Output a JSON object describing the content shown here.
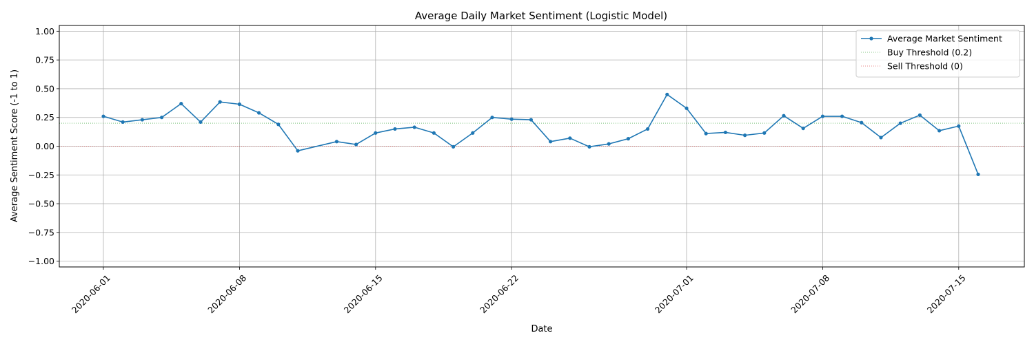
{
  "chart_data": {
    "type": "line",
    "title": "Average Daily Market Sentiment (Logistic Model)",
    "xlabel": "Date",
    "ylabel": "Average Sentiment Score (-1 to 1)",
    "ylim": [
      -1.05,
      1.05
    ],
    "xlim": [
      "2019-05-29",
      "2020-07-18"
    ],
    "x_ticks": [
      "2020-06-01",
      "2020-06-08",
      "2020-06-15",
      "2020-06-22",
      "2020-07-01",
      "2020-07-08",
      "2020-07-15"
    ],
    "y_ticks": [
      "1.00",
      "0.75",
      "0.50",
      "0.25",
      "0.00",
      "−0.25",
      "−0.50",
      "−0.75",
      "−1.00"
    ],
    "grid": true,
    "legend_position": "top-right",
    "series": [
      {
        "name": "Average Market Sentiment",
        "color": "#1f77b4",
        "x": [
          "2020-06-01",
          "2020-06-02",
          "2020-06-03",
          "2020-06-04",
          "2020-06-05",
          "2020-06-06",
          "2020-06-07",
          "2020-06-08",
          "2020-06-09",
          "2020-06-10",
          "2020-06-11",
          "2020-06-13",
          "2020-06-14",
          "2020-06-15",
          "2020-06-16",
          "2020-06-17",
          "2020-06-18",
          "2020-06-19",
          "2020-06-20",
          "2020-06-21",
          "2020-06-22",
          "2020-06-23",
          "2020-06-24",
          "2020-06-25",
          "2020-06-26",
          "2020-06-27",
          "2020-06-28",
          "2020-06-29",
          "2020-06-30",
          "2020-07-01",
          "2020-07-02",
          "2020-07-03",
          "2020-07-04",
          "2020-07-05",
          "2020-07-06",
          "2020-07-07",
          "2020-07-08",
          "2020-07-09",
          "2020-07-10",
          "2020-07-11",
          "2020-07-12",
          "2020-07-13",
          "2020-07-14",
          "2020-07-15",
          "2020-07-16"
        ],
        "values": [
          0.26,
          0.21,
          0.23,
          0.25,
          0.37,
          0.21,
          0.385,
          0.365,
          0.29,
          0.19,
          -0.04,
          0.04,
          0.015,
          0.115,
          0.15,
          0.165,
          0.115,
          -0.005,
          0.115,
          0.25,
          0.235,
          0.23,
          0.04,
          0.07,
          -0.005,
          0.02,
          0.065,
          0.15,
          0.45,
          0.33,
          0.11,
          0.12,
          0.095,
          0.115,
          0.265,
          0.155,
          0.26,
          0.26,
          0.205,
          0.075,
          0.2,
          0.27,
          0.135,
          0.175,
          -0.245
        ]
      }
    ],
    "thresholds": [
      {
        "name": "Buy Threshold (0.2)",
        "value": 0.2,
        "color": "#2ca02c"
      },
      {
        "name": "Sell Threshold (0)",
        "value": 0,
        "color": "#d62728"
      }
    ]
  }
}
